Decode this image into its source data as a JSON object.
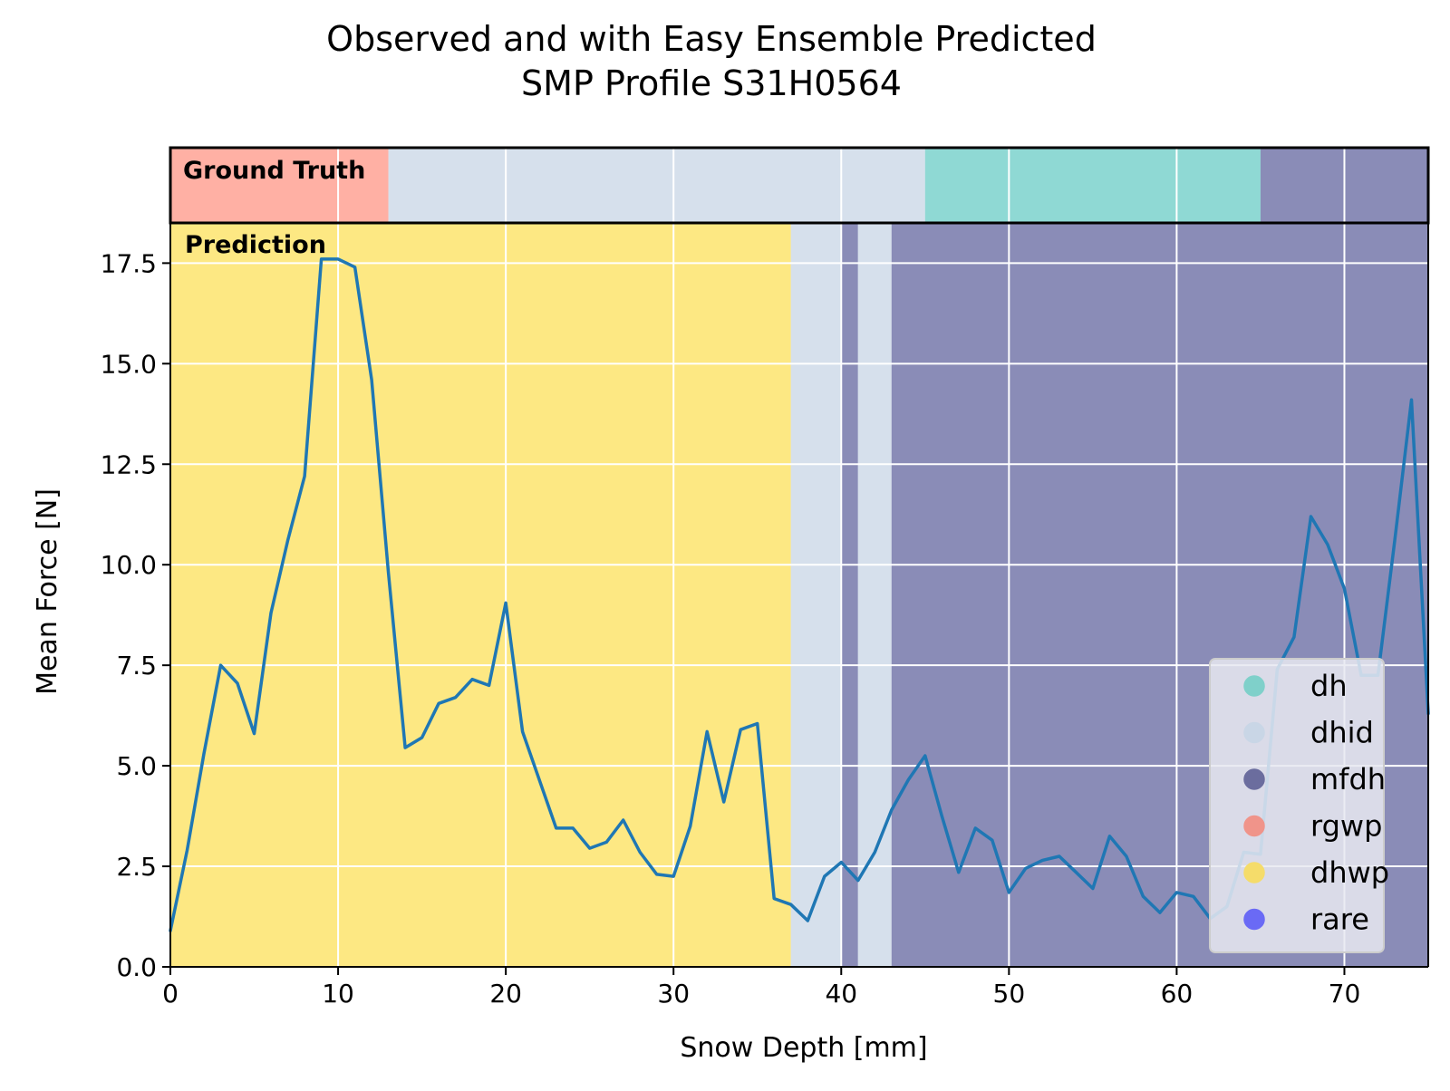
{
  "chart_data": {
    "type": "line",
    "title": "Observed and with Easy Ensemble Predicted",
    "subtitle": "SMP Profile S31H0564",
    "xlabel": "Snow Depth [mm]",
    "ylabel": "Mean Force [N]",
    "xlim": [
      0,
      75
    ],
    "ylim": [
      0,
      18.5
    ],
    "x_ticks": [
      0,
      10,
      20,
      30,
      40,
      50,
      60,
      70
    ],
    "y_ticks": [
      0.0,
      2.5,
      5.0,
      7.5,
      10.0,
      12.5,
      15.0,
      17.5
    ],
    "x_tick_labels": [
      "0",
      "10",
      "20",
      "30",
      "40",
      "50",
      "60",
      "70"
    ],
    "y_tick_labels": [
      "0.0",
      "2.5",
      "5.0",
      "7.5",
      "10.0",
      "12.5",
      "15.0",
      "17.5"
    ],
    "grid": true,
    "background_color": "#e7e9f1",
    "line_color": "#1f77b4",
    "series": [
      {
        "x": [
          0,
          1,
          2,
          3,
          4,
          5,
          6,
          7,
          8,
          9,
          10,
          11,
          12,
          13,
          14,
          15,
          16,
          17,
          18,
          19,
          20,
          21,
          22,
          23,
          24,
          25,
          26,
          27,
          28,
          29,
          30,
          31,
          32,
          33,
          34,
          35,
          36,
          37,
          38,
          39,
          40,
          41,
          42,
          43,
          44,
          45,
          46,
          47,
          48,
          49,
          50,
          51,
          52,
          53,
          54,
          55,
          56,
          57,
          58,
          59,
          60,
          61,
          62,
          63,
          64,
          65,
          66,
          67,
          68,
          69,
          70,
          71,
          72,
          73,
          74,
          75
        ],
        "y": [
          0.9,
          2.9,
          5.3,
          7.5,
          7.05,
          5.8,
          8.8,
          10.6,
          12.2,
          17.6,
          17.6,
          17.4,
          14.6,
          9.8,
          5.45,
          5.7,
          6.55,
          6.7,
          7.15,
          7.0,
          9.05,
          5.85,
          4.65,
          3.45,
          3.45,
          2.95,
          3.1,
          3.65,
          2.85,
          2.3,
          2.25,
          3.5,
          5.85,
          4.1,
          5.9,
          6.05,
          1.7,
          1.55,
          1.15,
          2.25,
          2.6,
          2.15,
          2.85,
          3.9,
          4.65,
          5.25,
          3.75,
          2.35,
          3.45,
          3.15,
          1.85,
          2.45,
          2.65,
          2.75,
          2.35,
          1.95,
          3.25,
          2.75,
          1.75,
          1.35,
          1.85,
          1.75,
          1.2,
          1.5,
          2.85,
          2.8,
          7.4,
          8.2,
          11.2,
          10.5,
          9.4,
          7.25,
          7.25,
          10.6,
          14.1,
          6.3
        ]
      }
    ],
    "ground_truth_segments": [
      {
        "start": 0,
        "end": 13,
        "label": "rgwp"
      },
      {
        "start": 13,
        "end": 45,
        "label": "dhid"
      },
      {
        "start": 45,
        "end": 65,
        "label": "dh"
      },
      {
        "start": 65,
        "end": 75,
        "label": "mfdh"
      }
    ],
    "prediction_segments": [
      {
        "start": 0,
        "end": 37,
        "label": "dhwp"
      },
      {
        "start": 37,
        "end": 40,
        "label": "dhid"
      },
      {
        "start": 40,
        "end": 41,
        "label": "mfdh"
      },
      {
        "start": 41,
        "end": 43,
        "label": "dhid"
      },
      {
        "start": 43,
        "end": 75,
        "label": "mfdh"
      }
    ],
    "class_colors": {
      "dh": "#8fd9d4",
      "dhid": "#d6e0ec",
      "mfdh": "#8a8cb7",
      "rgwp": "#ffb0a4",
      "dhwp": "#fde883",
      "rare": "#6e6ef0"
    },
    "legend": {
      "placement": "bottom-right",
      "entries": [
        {
          "label": "dh",
          "color": "#7fd0ca"
        },
        {
          "label": "dhid",
          "color": "#c9d6e6"
        },
        {
          "label": "mfdh",
          "color": "#6b6d9e"
        },
        {
          "label": "rgwp",
          "color": "#f0948a"
        },
        {
          "label": "dhwp",
          "color": "#f5dc6a"
        },
        {
          "label": "rare",
          "color": "#6a6af5"
        }
      ]
    },
    "panel_labels": {
      "ground_truth": "Ground Truth",
      "prediction": "Prediction"
    }
  }
}
